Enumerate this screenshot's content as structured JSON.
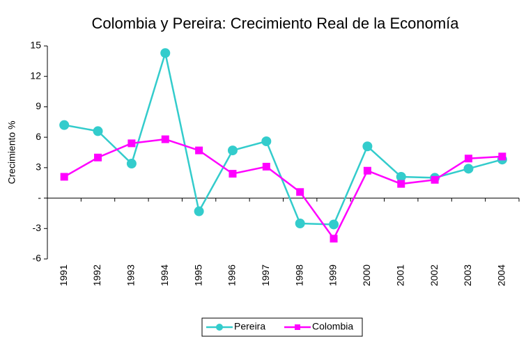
{
  "chart_data": {
    "type": "line",
    "title": "Colombia y Pereira: Crecimiento Real de la Economía",
    "y_label": "Crecimiento %",
    "categories": [
      "1991",
      "1992",
      "1993",
      "1994",
      "1995",
      "1996",
      "1997",
      "1998",
      "1999",
      "2000",
      "2001",
      "2002",
      "2003",
      "2004"
    ],
    "series": [
      {
        "name": "Pereira",
        "color": "#33cccc",
        "values": [
          7.2,
          6.6,
          3.4,
          14.3,
          -1.3,
          4.7,
          5.6,
          -2.5,
          -2.6,
          5.1,
          2.1,
          2.0,
          2.9,
          3.8
        ]
      },
      {
        "name": "Colombia",
        "color": "#ff00ff",
        "values": [
          2.1,
          4.0,
          5.4,
          5.8,
          4.7,
          2.4,
          3.1,
          0.6,
          -4.0,
          2.7,
          1.4,
          1.8,
          3.9,
          4.1
        ]
      }
    ],
    "ylim": [
      -6,
      15
    ],
    "yticks": [
      15,
      12,
      9,
      6,
      3,
      {
        "value": 0,
        "label": "-"
      },
      -3,
      -6
    ],
    "grid": false
  }
}
